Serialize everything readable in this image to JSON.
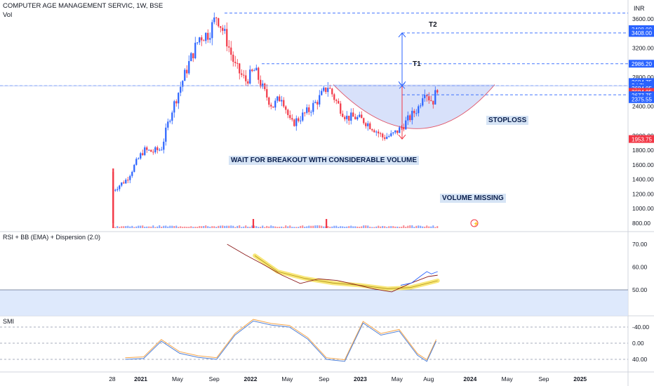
{
  "header": {
    "symbol": "COMPUTER AGE MANAGEMENT SERVIC, 1W, BSE",
    "vol": "Vol",
    "currency": "INR"
  },
  "price_axis": {
    "ticks": [
      "3600.00",
      "3400.00",
      "3200.00",
      "2800.00",
      "2600.00",
      "2400.00",
      "2000.00",
      "1800.00",
      "1600.00",
      "1400.00",
      "1200.00",
      "1000.00",
      "800.00"
    ]
  },
  "badges": [
    {
      "key": "t2a",
      "text": "3408.00",
      "color": "#2962ff"
    },
    {
      "key": "t2b",
      "text": "3408.00",
      "color": "#2962ff"
    },
    {
      "key": "t1",
      "text": "2986.20",
      "color": "#2962ff"
    },
    {
      "key": "b1",
      "text": "2684.75",
      "color": "#2962ff"
    },
    {
      "key": "b2",
      "text": "3d 7h",
      "color": "#2962ff"
    },
    {
      "key": "b3",
      "text": "2684.05",
      "color": "#2962ff"
    },
    {
      "key": "b4",
      "text": "2684.05",
      "color": "#f23645"
    },
    {
      "key": "b5",
      "text": "2677.75",
      "color": "#2962ff"
    },
    {
      "key": "b6",
      "text": "2375.55",
      "color": "#2962ff"
    },
    {
      "key": "b7",
      "text": "1953.75",
      "color": "#f23645"
    }
  ],
  "annotations": {
    "t2": "T2",
    "t1": "T1",
    "stoploss": "STOPLOSS",
    "breakout": "WAIT FOR BREAKOUT WITH CONSIDERABLE VOLUME",
    "volume_missing": "VOLUME MISSING"
  },
  "rsi_panel": {
    "title": "RSI + BB (EMA) + Dispersion (2.0)",
    "ticks": [
      "70.00",
      "60.00",
      "50.00"
    ]
  },
  "smi_panel": {
    "title": "SMI",
    "ticks": [
      "40.00",
      "0.00",
      "-40.00"
    ]
  },
  "time_axis": {
    "labels": [
      "28",
      "2021",
      "May",
      "Sep",
      "2022",
      "May",
      "Sep",
      "2023",
      "May",
      "Aug",
      "2024",
      "May",
      "Sep",
      "2025"
    ]
  },
  "colors": {
    "up": "#2962ff",
    "down": "#f23645",
    "bowl": "#b8c9f5",
    "band": "#f7e46a",
    "rsi_line": "#8b1a1a",
    "smi_blue": "#4e7fd6",
    "smi_orange": "#f5a54a"
  },
  "chart_data": [
    {
      "type": "candlestick",
      "title": "COMPUTER AGE MANAGEMENT SERVIC, 1W, BSE",
      "ylabel": "INR",
      "ylim": [
        750,
        3700
      ],
      "x_range": [
        "2020-09-28",
        "2025-03-31"
      ],
      "weekly_close_approx": [
        {
          "date": "2020-10-01",
          "close": 1250
        },
        {
          "date": "2020-10-15",
          "close": 1300
        },
        {
          "date": "2020-11-15",
          "close": 1400
        },
        {
          "date": "2020-12-15",
          "close": 1620
        },
        {
          "date": "2021-01-10",
          "close": 1800
        },
        {
          "date": "2021-02-10",
          "close": 1780
        },
        {
          "date": "2021-03-10",
          "close": 1820
        },
        {
          "date": "2021-04-10",
          "close": 2300
        },
        {
          "date": "2021-05-15",
          "close": 2700
        },
        {
          "date": "2021-06-15",
          "close": 3050
        },
        {
          "date": "2021-07-15",
          "close": 3350
        },
        {
          "date": "2021-08-15",
          "close": 3400
        },
        {
          "date": "2021-09-10",
          "close": 3650
        },
        {
          "date": "2021-10-10",
          "close": 3350
        },
        {
          "date": "2021-11-10",
          "close": 2950
        },
        {
          "date": "2021-12-15",
          "close": 2750
        },
        {
          "date": "2022-01-15",
          "close": 2900
        },
        {
          "date": "2022-02-15",
          "close": 2600
        },
        {
          "date": "2022-03-15",
          "close": 2400
        },
        {
          "date": "2022-04-15",
          "close": 2550
        },
        {
          "date": "2022-05-15",
          "close": 2150
        },
        {
          "date": "2022-06-15",
          "close": 2250
        },
        {
          "date": "2022-07-15",
          "close": 2350
        },
        {
          "date": "2022-08-15",
          "close": 2500
        },
        {
          "date": "2022-09-15",
          "close": 2680
        },
        {
          "date": "2022-10-15",
          "close": 2450
        },
        {
          "date": "2022-11-15",
          "close": 2250
        },
        {
          "date": "2022-12-15",
          "close": 2250
        },
        {
          "date": "2023-01-15",
          "close": 2200
        },
        {
          "date": "2023-02-15",
          "close": 2100
        },
        {
          "date": "2023-03-15",
          "close": 1980
        },
        {
          "date": "2023-04-15",
          "close": 2000
        },
        {
          "date": "2023-05-15",
          "close": 2100
        },
        {
          "date": "2023-06-15",
          "close": 2250
        },
        {
          "date": "2023-07-15",
          "close": 2400
        },
        {
          "date": "2023-08-01",
          "close": 2650
        },
        {
          "date": "2023-08-20",
          "close": 2500
        },
        {
          "date": "2023-09-01",
          "close": 2480
        },
        {
          "date": "2023-09-15",
          "close": 2684.05
        }
      ],
      "volume_spikes": [
        {
          "date": "2020-10-01",
          "volume": "high"
        },
        {
          "date": "2022-01-10",
          "volume": "medium"
        },
        {
          "date": "2022-09-10",
          "volume": "medium"
        }
      ],
      "levels": {
        "T2": 3408.0,
        "T1": 2986.2,
        "breakout": 2684.05,
        "stoploss": 2375.55,
        "bowl_low": 1953.75
      }
    },
    {
      "type": "line",
      "title": "RSI + BB (EMA) + Dispersion (2.0)",
      "ylim": [
        40,
        75
      ],
      "x": [
        "2021-10",
        "2021-12",
        "2022-02",
        "2022-04",
        "2022-06",
        "2022-08",
        "2022-10",
        "2022-12",
        "2023-02",
        "2023-04",
        "2023-06",
        "2023-08",
        "2023-09"
      ],
      "series": [
        {
          "values": [
            70,
            66,
            60,
            57,
            53,
            54,
            55,
            52,
            50,
            50,
            52,
            56,
            57
          ]
        }
      ]
    },
    {
      "type": "line",
      "title": "SMI",
      "ylim": [
        -60,
        55
      ],
      "x": [
        "2020-11",
        "2021-01",
        "2021-03",
        "2021-05",
        "2021-07",
        "2021-09",
        "2021-11",
        "2022-01",
        "2022-03",
        "2022-05",
        "2022-07",
        "2022-09",
        "2022-11",
        "2023-01",
        "2023-03",
        "2023-05",
        "2023-07",
        "2023-08",
        "2023-09"
      ],
      "series": [
        {
          "values": [
            40,
            38,
            -5,
            25,
            35,
            40,
            -20,
            -55,
            -45,
            -40,
            -10,
            40,
            45,
            -50,
            -20,
            -30,
            30,
            45,
            -5
          ]
        }
      ]
    }
  ]
}
